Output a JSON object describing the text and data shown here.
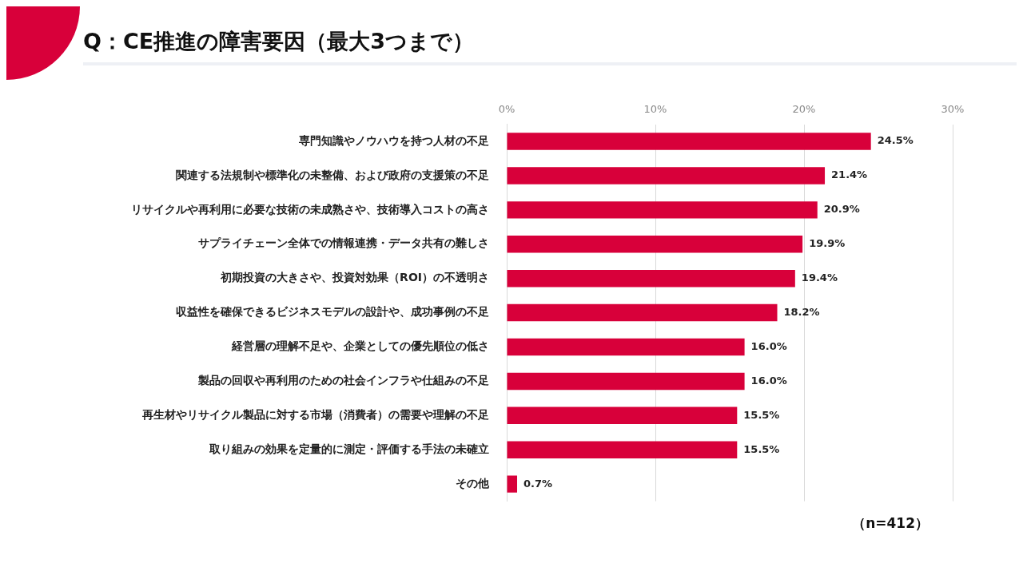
{
  "chart_data": {
    "type": "bar",
    "orientation": "horizontal",
    "title": "Q：CE推進の障害要因（最大3つまで）",
    "categories": [
      "専門知識やノウハウを持つ人材の不足",
      "関連する法規制や標準化の未整備、および政府の支援策の不足",
      "リサイクルや再利用に必要な技術の未成熟さや、技術導入コストの高さ",
      "サプライチェーン全体での情報連携・データ共有の難しさ",
      "初期投資の大きさや、投資対効果（ROI）の不透明さ",
      "収益性を確保できるビジネスモデルの設計や、成功事例の不足",
      "経営層の理解不足や、企業としての優先順位の低さ",
      "製品の回収や再利用のための社会インフラや仕組みの不足",
      "再生材やリサイクル製品に対する市場（消費者）の需要や理解の不足",
      "取り組みの効果を定量的に測定・評価する手法の未確立",
      "その他"
    ],
    "values": [
      24.5,
      21.4,
      20.9,
      19.9,
      19.4,
      18.2,
      16.0,
      16.0,
      15.5,
      15.5,
      0.7
    ],
    "value_labels": [
      "24.5%",
      "21.4%",
      "20.9%",
      "19.9%",
      "19.4%",
      "18.2%",
      "16.0%",
      "16.0%",
      "15.5%",
      "15.5%",
      "0.7%"
    ],
    "color": "#d8003a",
    "xlim": [
      0,
      30
    ],
    "xticks": [
      {
        "value": 0,
        "label": "0%"
      },
      {
        "value": 10,
        "label": "10%"
      },
      {
        "value": 20,
        "label": "20%"
      },
      {
        "value": 30,
        "label": "30%"
      }
    ],
    "grid": "x",
    "legend": false,
    "annotations": [
      "（n=412）"
    ]
  }
}
